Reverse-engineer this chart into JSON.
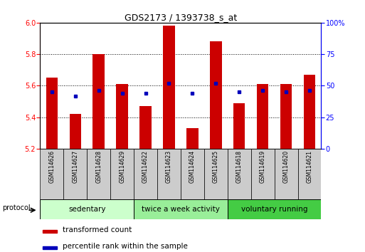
{
  "title": "GDS2173 / 1393738_s_at",
  "samples": [
    "GSM114626",
    "GSM114627",
    "GSM114628",
    "GSM114629",
    "GSM114622",
    "GSM114623",
    "GSM114624",
    "GSM114625",
    "GSM114618",
    "GSM114619",
    "GSM114620",
    "GSM114621"
  ],
  "red_values": [
    5.65,
    5.42,
    5.8,
    5.61,
    5.47,
    5.98,
    5.33,
    5.88,
    5.49,
    5.61,
    5.61,
    5.67
  ],
  "blue_pct": [
    45,
    42,
    46,
    44,
    44,
    52,
    44,
    52,
    45,
    46,
    45,
    46
  ],
  "ylim_left": [
    5.2,
    6.0
  ],
  "ylim_right": [
    0,
    100
  ],
  "yticks_left": [
    5.2,
    5.4,
    5.6,
    5.8,
    6.0
  ],
  "yticks_right": [
    0,
    25,
    50,
    75,
    100
  ],
  "ytick_labels_right": [
    "0",
    "25",
    "50",
    "75",
    "100%"
  ],
  "groups": [
    {
      "label": "sedentary",
      "indices": [
        0,
        1,
        2,
        3
      ],
      "color": "#ccffcc"
    },
    {
      "label": "twice a week activity",
      "indices": [
        4,
        5,
        6,
        7
      ],
      "color": "#99ee99"
    },
    {
      "label": "voluntary running",
      "indices": [
        8,
        9,
        10,
        11
      ],
      "color": "#44cc44"
    }
  ],
  "protocol_label": "protocol",
  "red_bar_color": "#cc0000",
  "blue_marker_color": "#0000bb",
  "legend_red_label": "transformed count",
  "legend_blue_label": "percentile rank within the sample",
  "bar_width": 0.5,
  "sample_box_color": "#cccccc",
  "title_fontsize": 9,
  "tick_fontsize": 7,
  "label_fontsize": 8
}
